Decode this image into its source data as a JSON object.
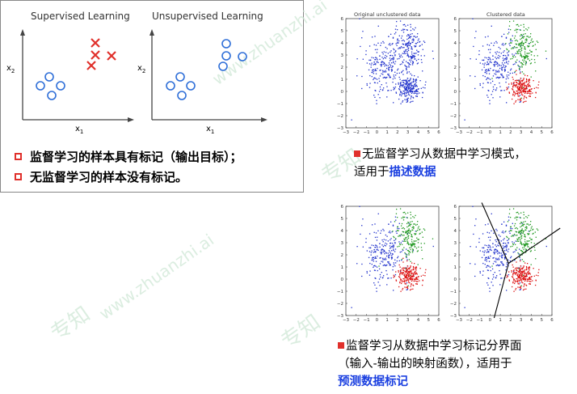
{
  "left_panel": {
    "supervised_title": "Supervised Learning",
    "unsupervised_title": "Unsupervised Learning",
    "x2_label": "x",
    "x2_sub": "2",
    "x1_label": "x",
    "x1_sub": "1",
    "bullets": [
      "监督学习的样本具有标记（输出目标）；",
      "无监督学习的样本没有标记。"
    ]
  },
  "top_plots": {
    "left_title": "Original unclustered data",
    "right_title": "Clustered data"
  },
  "captions": {
    "top_line1": "无监督学习从数据中学习模式，",
    "top_line2_prefix": "适用于",
    "top_line2_highlight": "描述数据",
    "bottom_line1": "监督学习从数据中学习标记分界面",
    "bottom_line2": "（输入-输出的映射函数），适用于",
    "bottom_line3_highlight": "预测数据标记"
  },
  "scatter_axes": {
    "x_ticks": [
      "−3",
      "−2",
      "−1",
      "0",
      "1",
      "2",
      "3",
      "4",
      "5",
      "6"
    ],
    "y_ticks_top": [
      "6",
      "5",
      "4",
      "3",
      "2",
      "1",
      "0",
      "−1",
      "−2",
      "−3"
    ],
    "y_ticks_bottom": [
      "6",
      "5",
      "4",
      "3",
      "2",
      "1",
      "0",
      "−1",
      "−2",
      "−3"
    ]
  },
  "watermark": {
    "text1": "专知",
    "text2": "www.zhuanzhi.ai"
  },
  "colors": {
    "red": "#e0302b",
    "blue": "#1a3fe0",
    "cluster_blue": "#2233cc",
    "cluster_red": "#dd1111",
    "cluster_green": "#229922"
  }
}
